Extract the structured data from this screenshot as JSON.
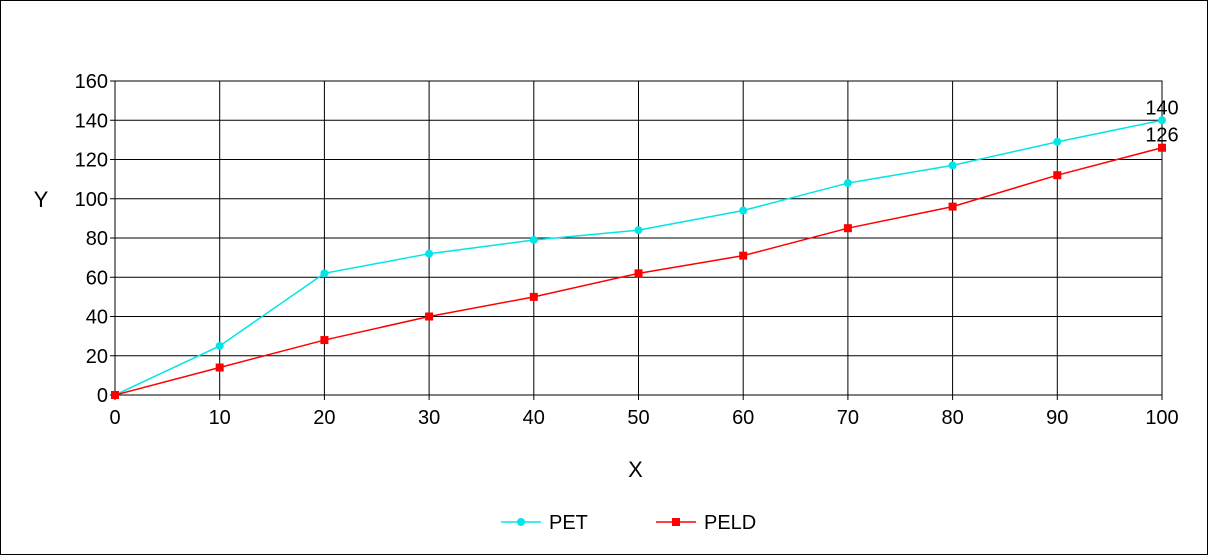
{
  "chart_data": {
    "type": "line",
    "title": "",
    "xlabel": "X",
    "ylabel": "Y",
    "x": [
      0,
      10,
      20,
      30,
      40,
      50,
      60,
      70,
      80,
      90,
      100
    ],
    "xlim": [
      0,
      100
    ],
    "ylim": [
      0,
      160
    ],
    "x_ticks": [
      0,
      10,
      20,
      30,
      40,
      50,
      60,
      70,
      80,
      90,
      100
    ],
    "y_ticks": [
      0,
      20,
      40,
      60,
      80,
      100,
      120,
      140,
      160
    ],
    "grid": true,
    "legend_position": "bottom-center",
    "series": [
      {
        "name": "PET",
        "color": "#00e5e5",
        "marker": "circle",
        "values": [
          0,
          25,
          62,
          72,
          79,
          84,
          94,
          108,
          117,
          129,
          140
        ],
        "end_label": "140"
      },
      {
        "name": "PELD",
        "color": "#ff0000",
        "marker": "square",
        "values": [
          0,
          14,
          28,
          40,
          50,
          62,
          71,
          85,
          96,
          112,
          126
        ],
        "end_label": "126"
      }
    ]
  }
}
